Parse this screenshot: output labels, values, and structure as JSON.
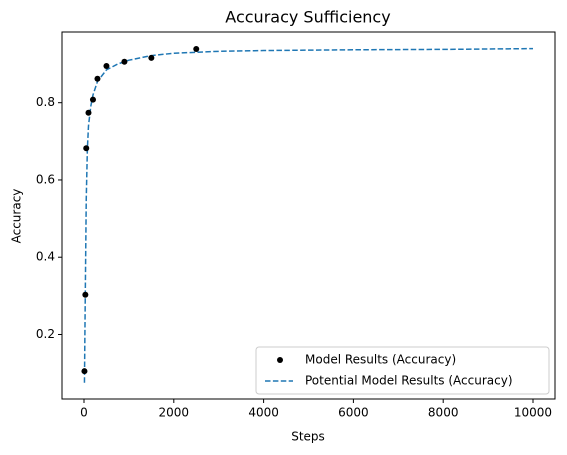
{
  "chart_data": {
    "type": "scatter",
    "title": "Accuracy Sufficiency",
    "xlabel": "Steps",
    "ylabel": "Accuracy",
    "xlim": [
      -490,
      10490
    ],
    "ylim": [
      0.033,
      0.983
    ],
    "xticks": [
      0,
      2000,
      4000,
      6000,
      8000,
      10000
    ],
    "yticks": [
      0.2,
      0.4,
      0.6,
      0.8
    ],
    "grid": false,
    "legend": "lower right",
    "series": [
      {
        "name": "Model Results (Accuracy)",
        "type": "scatter",
        "color": "#000000",
        "x": [
          10,
          30,
          50,
          100,
          200,
          300,
          500,
          900,
          1500,
          2500
        ],
        "values": [
          0.105,
          0.303,
          0.682,
          0.774,
          0.808,
          0.862,
          0.895,
          0.906,
          0.916,
          0.939
        ]
      },
      {
        "name": "Potential Model Results (Accuracy)",
        "type": "line",
        "style": "dashed",
        "color": "#1f77b4",
        "x": [
          10,
          20,
          30,
          50,
          75,
          100,
          150,
          200,
          300,
          500,
          750,
          1000,
          1500,
          2000,
          3000,
          4000,
          6000,
          8000,
          10000
        ],
        "values": [
          0.075,
          0.2,
          0.32,
          0.55,
          0.68,
          0.74,
          0.79,
          0.82,
          0.855,
          0.885,
          0.9,
          0.91,
          0.922,
          0.928,
          0.933,
          0.935,
          0.937,
          0.938,
          0.94
        ]
      }
    ]
  }
}
